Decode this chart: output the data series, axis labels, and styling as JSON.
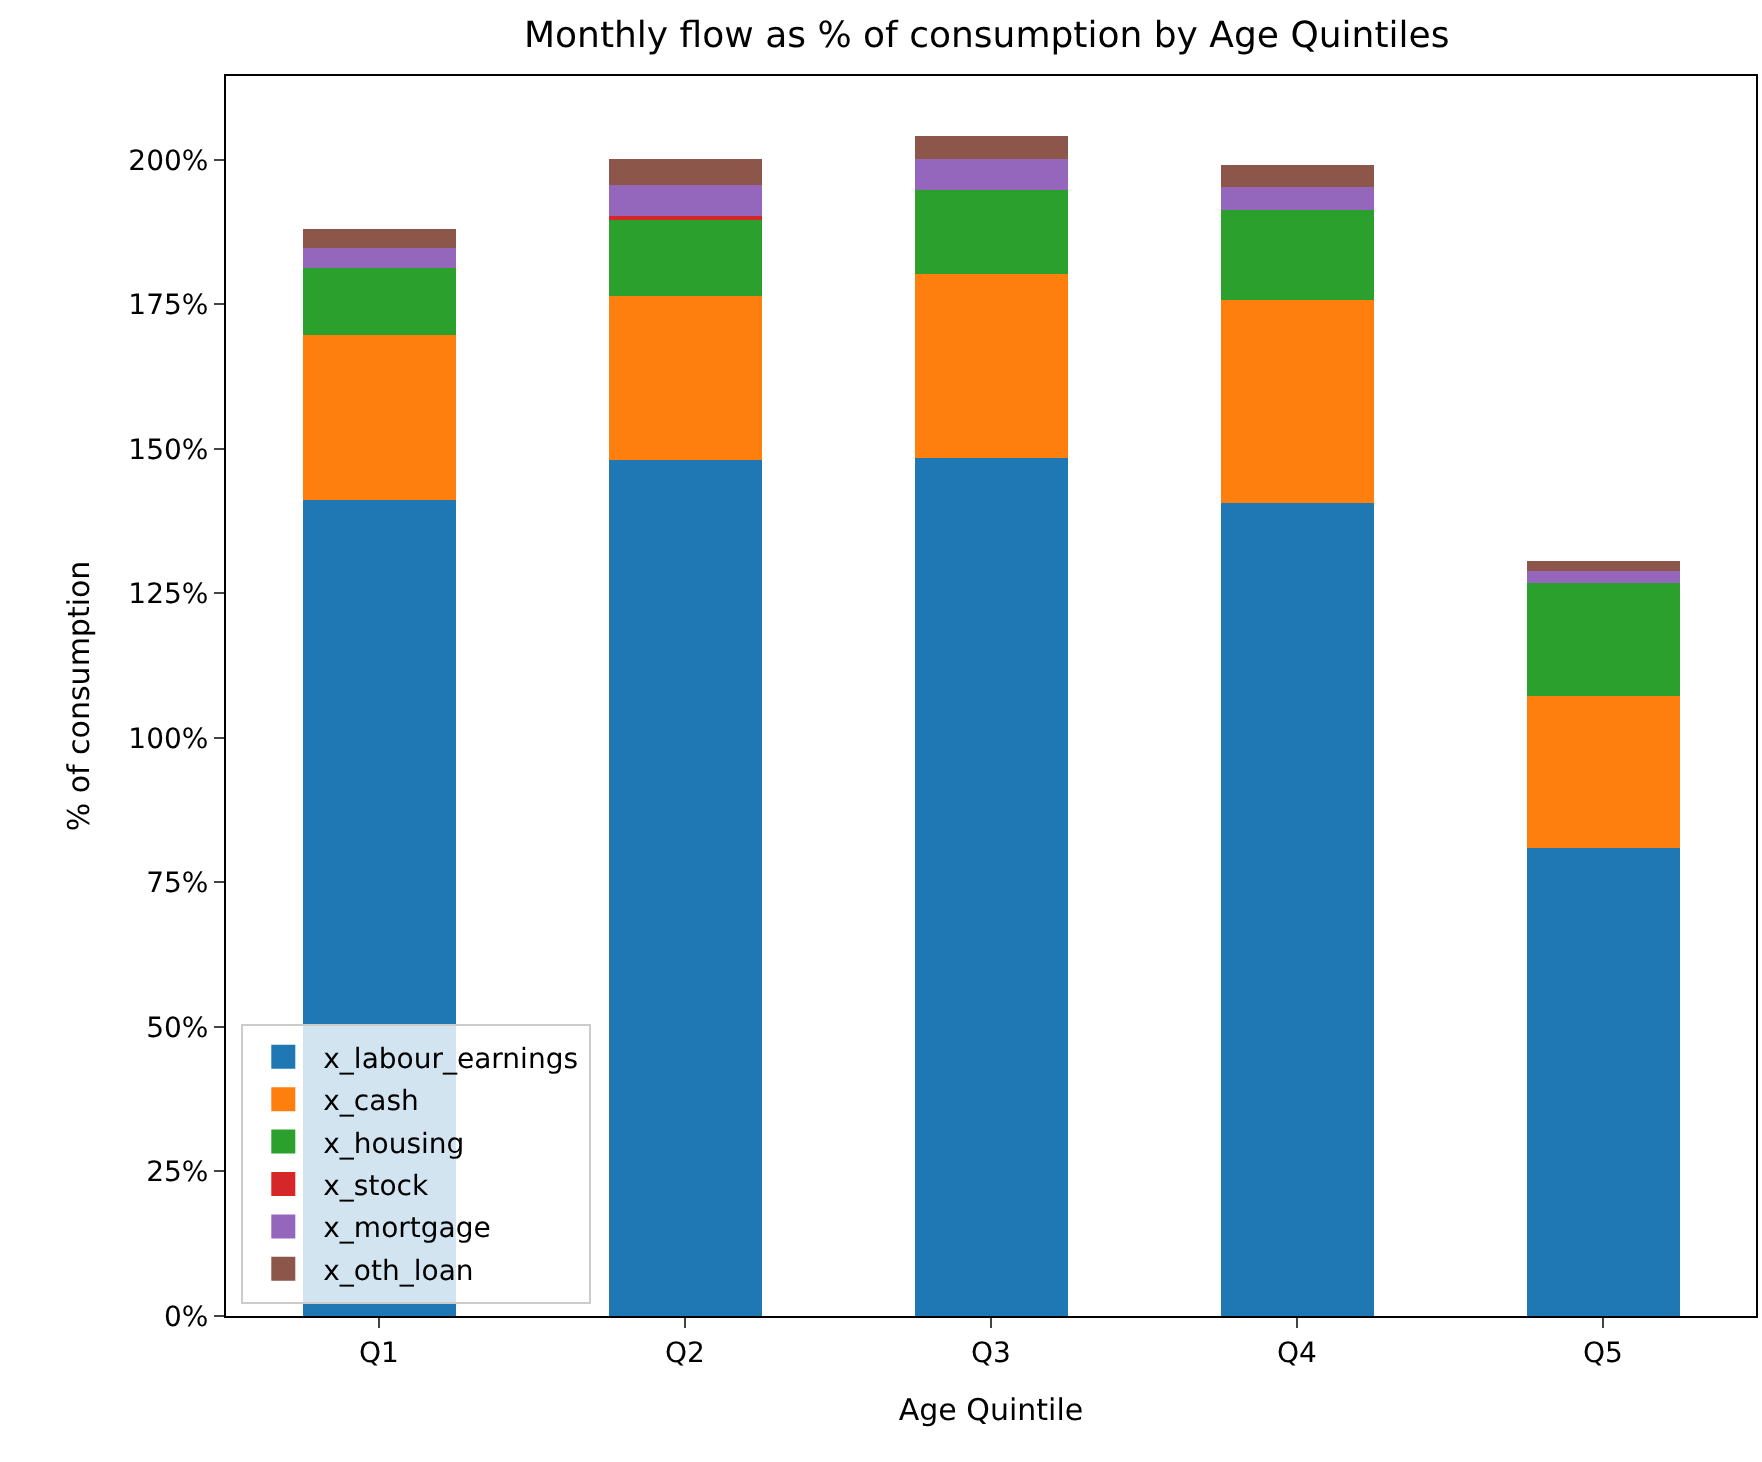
{
  "chart_data": {
    "type": "bar",
    "title": "Monthly flow as % of consumption by Age Quintiles",
    "xlabel": "Age Quintile",
    "ylabel": "% of consumption",
    "categories": [
      "Q1",
      "Q2",
      "Q3",
      "Q4",
      "Q5"
    ],
    "stacked": true,
    "series": [
      {
        "name": "x_labour_earnings",
        "color": "#1f77b4",
        "values": [
          141.2,
          148.0,
          148.4,
          140.6,
          81.0
        ]
      },
      {
        "name": "x_cash",
        "color": "#ff7f0e",
        "values": [
          28.5,
          28.4,
          31.8,
          35.2,
          26.3
        ]
      },
      {
        "name": "x_housing",
        "color": "#2ca02c",
        "values": [
          11.6,
          13.3,
          14.5,
          15.5,
          19.5
        ]
      },
      {
        "name": "x_stock",
        "color": "#d62728",
        "values": [
          0,
          0.5,
          0,
          0,
          0
        ]
      },
      {
        "name": "x_mortgage",
        "color": "#9467bd",
        "values": [
          3.4,
          5.5,
          5.5,
          4.0,
          2.0
        ]
      },
      {
        "name": "x_oth_loan",
        "color": "#8c564b",
        "values": [
          3.4,
          4.5,
          4.0,
          3.8,
          1.8
        ]
      }
    ],
    "ylim": [
      0,
      214.5
    ],
    "yticks": [
      {
        "value": 0,
        "label": "0%"
      },
      {
        "value": 25,
        "label": "25%"
      },
      {
        "value": 50,
        "label": "50%"
      },
      {
        "value": 75,
        "label": "75%"
      },
      {
        "value": 100,
        "label": "100%"
      },
      {
        "value": 125,
        "label": "125%"
      },
      {
        "value": 150,
        "label": "150%"
      },
      {
        "value": 175,
        "label": "175%"
      },
      {
        "value": 200,
        "label": "200%"
      }
    ],
    "legend": "bottom left"
  }
}
